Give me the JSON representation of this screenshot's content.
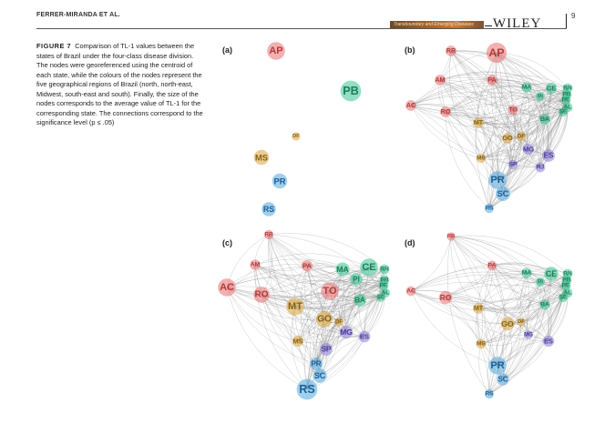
{
  "header": {
    "running_head": "FERRER-MIRANDA ET AL.",
    "banner_text": "Transboundary and Emerging Diseases",
    "publisher": "WILEY",
    "page_number": "9"
  },
  "caption": {
    "label": "FIGURE 7",
    "text": "Comparison of TL-1 values between the states of Brazil under the four-class disease division. The nodes were georeferenced using the centroid of each state, while the colours of the nodes represent the five geographical regions of Brazil (north, north-east, Midwest, south-east and south). Finally, the size of the nodes corresponds to the average value of TL-1 for the corresponding state. The connections correspond to the significance level (p ≤ .05)"
  },
  "colors": {
    "north": "#e8716f",
    "north_east": "#39c494",
    "midwest": "#d9a43c",
    "south_east": "#8e7ed6",
    "south": "#52a8df",
    "edge": "#7a7a7a"
  },
  "panels": [
    {
      "label": "(a)",
      "nodes": [
        {
          "state": "AP",
          "region": "north",
          "tl1": 3.0
        },
        {
          "state": "PB",
          "region": "north_east",
          "tl1": 3.6
        },
        {
          "state": "DF",
          "region": "midwest",
          "tl1": 1.0
        },
        {
          "state": "MS",
          "region": "midwest",
          "tl1": 2.4
        },
        {
          "state": "PR",
          "region": "south",
          "tl1": 2.4
        },
        {
          "state": "RS",
          "region": "south",
          "tl1": 2.2
        }
      ]
    },
    {
      "label": "(b)",
      "nodes": [
        {
          "state": "RR",
          "region": "north",
          "tl1": 1.5
        },
        {
          "state": "AP",
          "region": "north",
          "tl1": 3.5
        },
        {
          "state": "AM",
          "region": "north",
          "tl1": 1.5
        },
        {
          "state": "PA",
          "region": "north",
          "tl1": 1.5
        },
        {
          "state": "AC",
          "region": "north",
          "tl1": 1.5
        },
        {
          "state": "RO",
          "region": "north",
          "tl1": 1.5
        },
        {
          "state": "TO",
          "region": "north",
          "tl1": 1.4
        },
        {
          "state": "MA",
          "region": "north_east",
          "tl1": 1.4
        },
        {
          "state": "CE",
          "region": "north_east",
          "tl1": 1.6
        },
        {
          "state": "RN",
          "region": "north_east",
          "tl1": 1.3
        },
        {
          "state": "PB",
          "region": "north_east",
          "tl1": 1.3
        },
        {
          "state": "PI",
          "region": "north_east",
          "tl1": 1.2
        },
        {
          "state": "PE",
          "region": "north_east",
          "tl1": 1.3
        },
        {
          "state": "AL",
          "region": "north_east",
          "tl1": 1.3
        },
        {
          "state": "SE",
          "region": "north_east",
          "tl1": 1.2
        },
        {
          "state": "BA",
          "region": "north_east",
          "tl1": 1.5
        },
        {
          "state": "MT",
          "region": "midwest",
          "tl1": 1.5
        },
        {
          "state": "GO",
          "region": "midwest",
          "tl1": 1.5
        },
        {
          "state": "DF",
          "region": "midwest",
          "tl1": 1.2
        },
        {
          "state": "MS",
          "region": "midwest",
          "tl1": 1.2
        },
        {
          "state": "MG",
          "region": "south_east",
          "tl1": 1.6
        },
        {
          "state": "ES",
          "region": "south_east",
          "tl1": 1.9
        },
        {
          "state": "SP",
          "region": "south_east",
          "tl1": 1.3
        },
        {
          "state": "RJ",
          "region": "south_east",
          "tl1": 1.3
        },
        {
          "state": "PR",
          "region": "south",
          "tl1": 3.0
        },
        {
          "state": "SC",
          "region": "south",
          "tl1": 2.3
        },
        {
          "state": "RS",
          "region": "south",
          "tl1": 1.2
        }
      ]
    },
    {
      "label": "(c)",
      "nodes": [
        {
          "state": "RR",
          "region": "north",
          "tl1": 1.2
        },
        {
          "state": "AM",
          "region": "north",
          "tl1": 1.4
        },
        {
          "state": "PA",
          "region": "north",
          "tl1": 1.6
        },
        {
          "state": "AC",
          "region": "north",
          "tl1": 3.0
        },
        {
          "state": "RO",
          "region": "north",
          "tl1": 2.6
        },
        {
          "state": "TO",
          "region": "north",
          "tl1": 3.0
        },
        {
          "state": "MA",
          "region": "north_east",
          "tl1": 2.1
        },
        {
          "state": "CE",
          "region": "north_east",
          "tl1": 3.0
        },
        {
          "state": "RN",
          "region": "north_east",
          "tl1": 1.3
        },
        {
          "state": "PB",
          "region": "north_east",
          "tl1": 1.3
        },
        {
          "state": "PI",
          "region": "north_east",
          "tl1": 1.9
        },
        {
          "state": "PE",
          "region": "north_east",
          "tl1": 1.3
        },
        {
          "state": "AL",
          "region": "north_east",
          "tl1": 1.2
        },
        {
          "state": "SE",
          "region": "north_east",
          "tl1": 1.1
        },
        {
          "state": "BA",
          "region": "north_east",
          "tl1": 1.9
        },
        {
          "state": "MT",
          "region": "midwest",
          "tl1": 3.0
        },
        {
          "state": "GO",
          "region": "midwest",
          "tl1": 2.7
        },
        {
          "state": "DF",
          "region": "midwest",
          "tl1": 1.1
        },
        {
          "state": "MS",
          "region": "midwest",
          "tl1": 1.6
        },
        {
          "state": "MG",
          "region": "south_east",
          "tl1": 2.0
        },
        {
          "state": "ES",
          "region": "south_east",
          "tl1": 1.7
        },
        {
          "state": "SP",
          "region": "south_east",
          "tl1": 1.9
        },
        {
          "state": "PR",
          "region": "south",
          "tl1": 1.9
        },
        {
          "state": "SC",
          "region": "south",
          "tl1": 2.2
        },
        {
          "state": "RS",
          "region": "south",
          "tl1": 3.6
        }
      ]
    },
    {
      "label": "(d)",
      "nodes": [
        {
          "state": "RR",
          "region": "north",
          "tl1": 1.0
        },
        {
          "state": "PA",
          "region": "north",
          "tl1": 1.3
        },
        {
          "state": "AC",
          "region": "north",
          "tl1": 1.3
        },
        {
          "state": "RO",
          "region": "north",
          "tl1": 2.0
        },
        {
          "state": "MA",
          "region": "north_east",
          "tl1": 1.4
        },
        {
          "state": "CE",
          "region": "north_east",
          "tl1": 2.2
        },
        {
          "state": "RN",
          "region": "north_east",
          "tl1": 1.3
        },
        {
          "state": "PB",
          "region": "north_east",
          "tl1": 1.3
        },
        {
          "state": "PI",
          "region": "north_east",
          "tl1": 1.2
        },
        {
          "state": "PE",
          "region": "north_east",
          "tl1": 1.3
        },
        {
          "state": "AL",
          "region": "north_east",
          "tl1": 1.3
        },
        {
          "state": "SE",
          "region": "north_east",
          "tl1": 1.2
        },
        {
          "state": "BA",
          "region": "north_east",
          "tl1": 1.4
        },
        {
          "state": "MT",
          "region": "midwest",
          "tl1": 1.5
        },
        {
          "state": "GO",
          "region": "midwest",
          "tl1": 2.1
        },
        {
          "state": "DF",
          "region": "midwest",
          "tl1": 1.0
        },
        {
          "state": "MS",
          "region": "midwest",
          "tl1": 1.3
        },
        {
          "state": "MG",
          "region": "south_east",
          "tl1": 1.1
        },
        {
          "state": "ES",
          "region": "south_east",
          "tl1": 1.6
        },
        {
          "state": "PR",
          "region": "south",
          "tl1": 3.0
        },
        {
          "state": "SC",
          "region": "south",
          "tl1": 1.8
        },
        {
          "state": "RS",
          "region": "south",
          "tl1": 1.2
        }
      ]
    }
  ]
}
